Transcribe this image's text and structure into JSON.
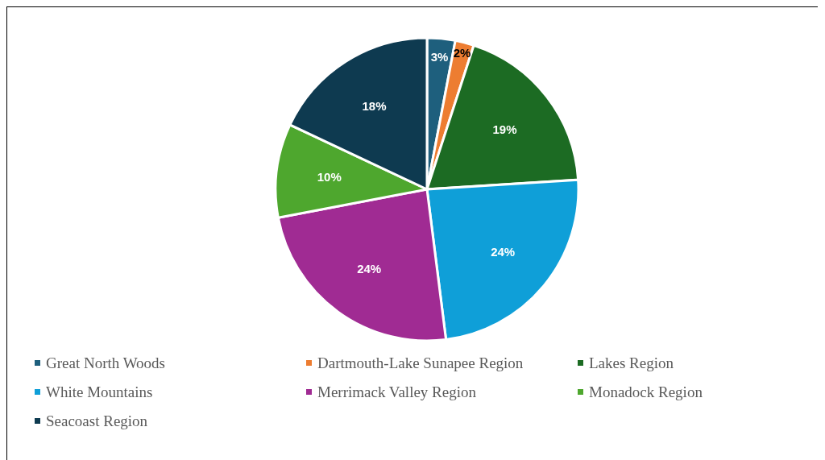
{
  "chart_data": {
    "type": "pie",
    "categories": [
      "Great North Woods",
      "Dartmouth-Lake Sunapee Region",
      "Lakes Region",
      "White Mountains",
      "Merrimack Valley Region",
      "Monadock Region",
      "Seacoast Region"
    ],
    "values": [
      3,
      2,
      19,
      24,
      24,
      10,
      18
    ],
    "colors": [
      "#1e5f7d",
      "#ed7d31",
      "#1c6b23",
      "#0f9fd8",
      "#a02b93",
      "#4ea72e",
      "#0e3a50"
    ],
    "value_labels": [
      "3%",
      "2%",
      "19%",
      "24%",
      "24%",
      "10%",
      "18%"
    ],
    "legend": "bottom"
  }
}
